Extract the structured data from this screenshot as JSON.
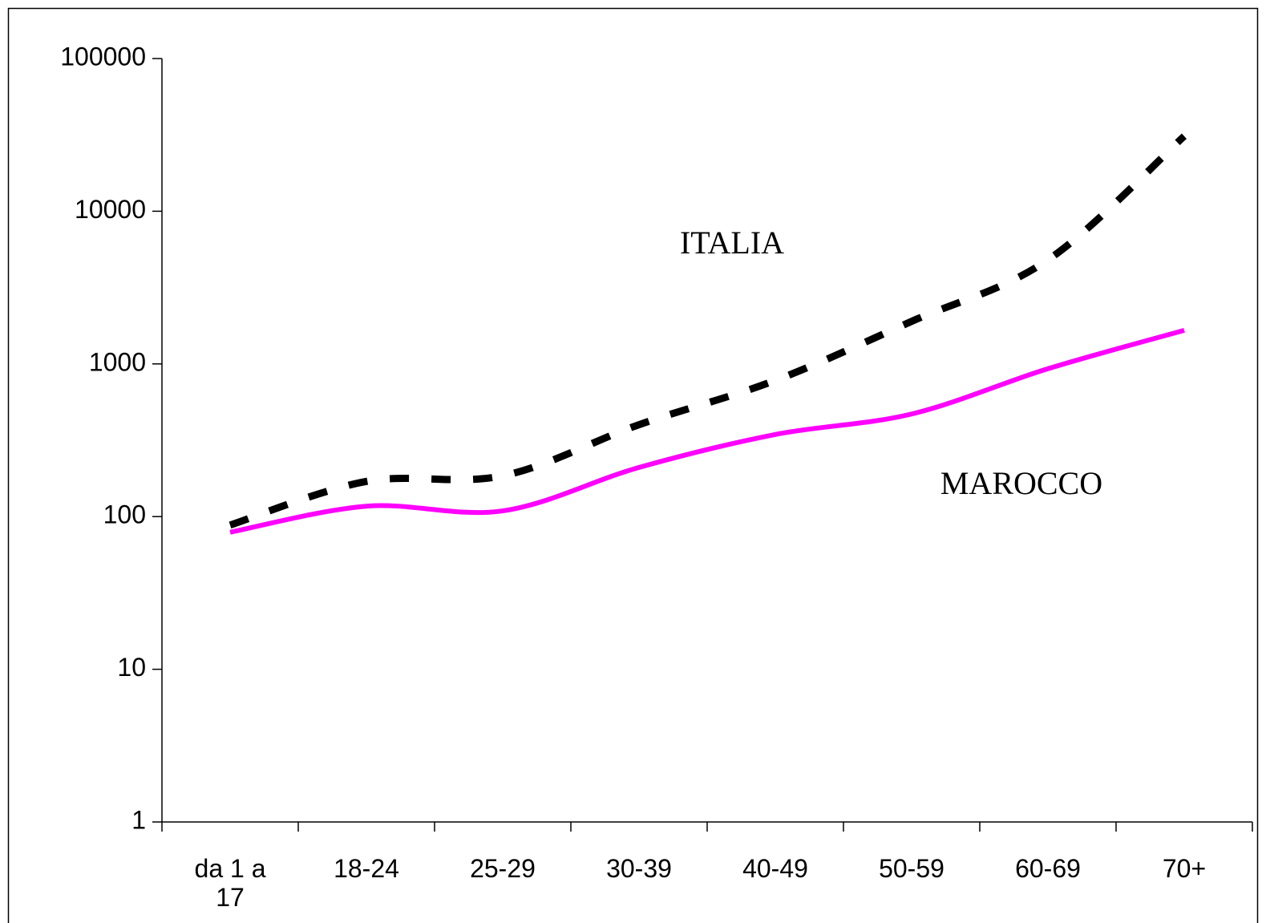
{
  "chart_data": {
    "type": "line",
    "categories": [
      "da 1 a 17",
      "18-24",
      "25-29",
      "30-39",
      "40-49",
      "50-59",
      "60-69",
      "70+"
    ],
    "series": [
      {
        "name": "ITALIA",
        "color": "#000000",
        "dashed": true,
        "values": [
          88,
          170,
          185,
          400,
          780,
          1900,
          4800,
          31000
        ]
      },
      {
        "name": "MAROCCO",
        "color": "#ff00ff",
        "dashed": false,
        "values": [
          79,
          117,
          109,
          210,
          345,
          470,
          930,
          1660
        ]
      }
    ],
    "ylim": [
      1,
      100000
    ],
    "yticks": [
      1,
      10,
      100,
      1000,
      10000,
      100000
    ],
    "log_scale": true,
    "grid": false
  }
}
